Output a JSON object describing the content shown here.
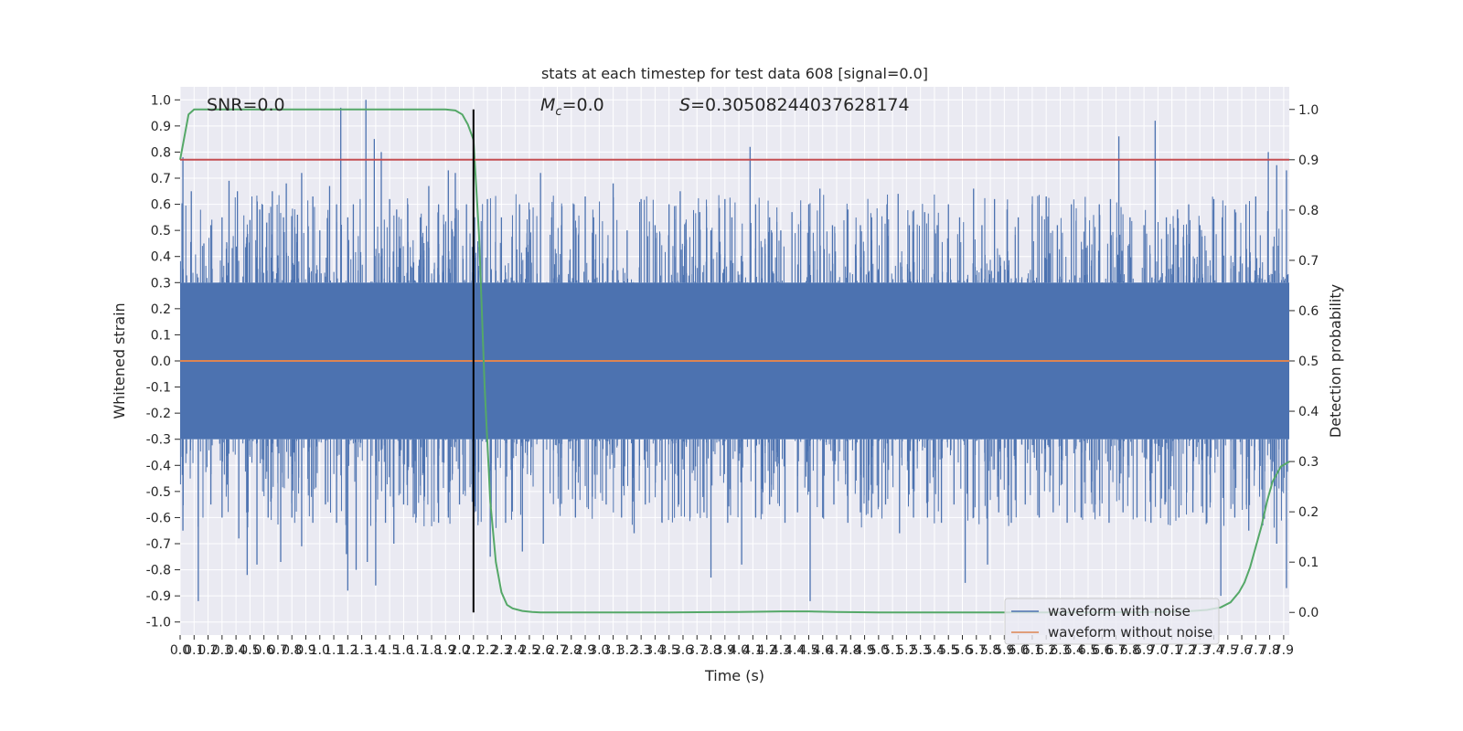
{
  "chart_data": {
    "type": "line",
    "title": "stats at each timestep for test data 608 [signal=0.0]",
    "xlabel": "Time (s)",
    "ylabel_left": "Whitened strain",
    "ylabel_right": "Detection probability",
    "xlim": [
      0.0,
      7.94
    ],
    "ylim_left": [
      -1.05,
      1.05
    ],
    "ylim_right": [
      -0.045,
      1.045
    ],
    "x_ticks": [
      0.0,
      0.1,
      0.2,
      0.3,
      0.4,
      0.5,
      0.6,
      0.7,
      0.8,
      0.9,
      1.0,
      1.1,
      1.2,
      1.3,
      1.4,
      1.5,
      1.6,
      1.7,
      1.8,
      1.9,
      2.0,
      2.1,
      2.2,
      2.3,
      2.4,
      2.5,
      2.6,
      2.7,
      2.8,
      2.9,
      3.0,
      3.1,
      3.2,
      3.3,
      3.4,
      3.5,
      3.6,
      3.7,
      3.8,
      3.9,
      4.0,
      4.1,
      4.2,
      4.3,
      4.4,
      4.5,
      4.6,
      4.7,
      4.8,
      4.9,
      5.0,
      5.1,
      5.2,
      5.3,
      5.4,
      5.5,
      5.6,
      5.7,
      5.8,
      5.9,
      6.0,
      6.1,
      6.2,
      6.3,
      6.4,
      6.5,
      6.6,
      6.7,
      6.8,
      6.9,
      7.0,
      7.1,
      7.2,
      7.3,
      7.4,
      7.5,
      7.6,
      7.7,
      7.8,
      7.9
    ],
    "y_ticks_left": [
      -1.0,
      -0.9,
      -0.8,
      -0.7,
      -0.6,
      -0.5,
      -0.4,
      -0.3,
      -0.2,
      -0.1,
      0.0,
      0.1,
      0.2,
      0.3,
      0.4,
      0.5,
      0.6,
      0.7,
      0.8,
      0.9,
      1.0
    ],
    "y_ticks_right": [
      0.0,
      0.1,
      0.2,
      0.3,
      0.4,
      0.5,
      0.6,
      0.7,
      0.8,
      0.9,
      1.0
    ],
    "grid": true,
    "legend_position": "lower-right",
    "annotations": {
      "snr": "SNR=0.0",
      "mc_symbol": "M",
      "mc_sub": "c",
      "mc_value": "=0.0",
      "s_symbol": "S",
      "s_value": "=0.30508244037628174"
    },
    "vertical_marker_x": 2.1,
    "threshold_probability": 0.9,
    "noise_spikes": {
      "series_name": "waveform with noise",
      "color": "#4c72b0",
      "pos": [
        [
          0.02,
          0.78
        ],
        [
          0.08,
          0.65
        ],
        [
          0.17,
          0.45
        ],
        [
          0.22,
          0.52
        ],
        [
          0.3,
          0.55
        ],
        [
          0.35,
          0.69
        ],
        [
          0.41,
          0.65
        ],
        [
          0.5,
          0.54
        ],
        [
          0.57,
          0.58
        ],
        [
          0.62,
          0.53
        ],
        [
          0.66,
          0.65
        ],
        [
          0.74,
          0.55
        ],
        [
          0.76,
          0.68
        ],
        [
          0.84,
          0.56
        ],
        [
          0.87,
          0.72
        ],
        [
          0.95,
          0.63
        ],
        [
          1.0,
          0.5
        ],
        [
          1.07,
          0.67
        ],
        [
          1.12,
          0.6
        ],
        [
          1.15,
          0.97
        ],
        [
          1.2,
          0.55
        ],
        [
          1.24,
          0.6
        ],
        [
          1.33,
          1.0
        ],
        [
          1.39,
          0.85
        ],
        [
          1.44,
          0.8
        ],
        [
          1.5,
          0.62
        ],
        [
          1.55,
          0.58
        ],
        [
          1.63,
          0.6
        ],
        [
          1.72,
          0.55
        ],
        [
          1.78,
          0.67
        ],
        [
          1.85,
          0.6
        ],
        [
          1.92,
          0.73
        ],
        [
          1.97,
          0.72
        ],
        [
          2.05,
          0.6
        ],
        [
          2.2,
          0.62
        ],
        [
          2.3,
          0.55
        ],
        [
          2.43,
          0.6
        ],
        [
          2.5,
          0.58
        ],
        [
          2.58,
          0.72
        ],
        [
          2.66,
          0.55
        ],
        [
          2.73,
          0.52
        ],
        [
          2.82,
          0.6
        ],
        [
          2.9,
          0.63
        ],
        [
          2.96,
          0.55
        ],
        [
          3.1,
          0.68
        ],
        [
          3.2,
          0.5
        ],
        [
          3.3,
          0.62
        ],
        [
          3.4,
          0.52
        ],
        [
          3.5,
          0.6
        ],
        [
          3.58,
          0.65
        ],
        [
          3.62,
          0.53
        ],
        [
          3.72,
          0.57
        ],
        [
          3.8,
          0.5
        ],
        [
          3.9,
          0.62
        ],
        [
          3.95,
          0.55
        ],
        [
          4.08,
          0.82
        ],
        [
          4.12,
          0.6
        ],
        [
          4.22,
          0.55
        ],
        [
          4.3,
          0.5
        ],
        [
          4.38,
          0.57
        ],
        [
          4.5,
          0.6
        ],
        [
          4.58,
          0.66
        ],
        [
          4.67,
          0.52
        ],
        [
          4.78,
          0.58
        ],
        [
          4.87,
          0.52
        ],
        [
          4.95,
          0.55
        ],
        [
          5.06,
          0.6
        ],
        [
          5.14,
          0.64
        ],
        [
          5.22,
          0.52
        ],
        [
          5.33,
          0.57
        ],
        [
          5.42,
          0.52
        ],
        [
          5.5,
          0.6
        ],
        [
          5.58,
          0.55
        ],
        [
          5.68,
          0.66
        ],
        [
          5.74,
          0.52
        ],
        [
          5.83,
          0.62
        ],
        [
          5.92,
          0.58
        ],
        [
          6.0,
          0.55
        ],
        [
          6.1,
          0.6
        ],
        [
          6.2,
          0.63
        ],
        [
          6.28,
          0.52
        ],
        [
          6.38,
          0.6
        ],
        [
          6.48,
          0.55
        ],
        [
          6.58,
          0.6
        ],
        [
          6.66,
          0.62
        ],
        [
          6.72,
          0.86
        ],
        [
          6.8,
          0.55
        ],
        [
          6.9,
          0.52
        ],
        [
          6.98,
          0.92
        ],
        [
          7.06,
          0.55
        ],
        [
          7.14,
          0.58
        ],
        [
          7.22,
          0.6
        ],
        [
          7.3,
          0.52
        ],
        [
          7.4,
          0.62
        ],
        [
          7.46,
          0.55
        ],
        [
          7.55,
          0.58
        ],
        [
          7.63,
          0.6
        ],
        [
          7.7,
          0.63
        ],
        [
          7.79,
          0.8
        ],
        [
          7.85,
          0.75
        ],
        [
          7.92,
          0.73
        ]
      ],
      "neg": [
        [
          0.02,
          -0.65
        ],
        [
          0.13,
          -0.92
        ],
        [
          0.22,
          -0.55
        ],
        [
          0.3,
          -0.6
        ],
        [
          0.42,
          -0.68
        ],
        [
          0.48,
          -0.82
        ],
        [
          0.55,
          -0.78
        ],
        [
          0.63,
          -0.6
        ],
        [
          0.72,
          -0.77
        ],
        [
          0.8,
          -0.6
        ],
        [
          0.87,
          -0.71
        ],
        [
          0.95,
          -0.62
        ],
        [
          1.04,
          -0.55
        ],
        [
          1.12,
          -0.62
        ],
        [
          1.19,
          -0.74
        ],
        [
          1.2,
          -0.88
        ],
        [
          1.26,
          -0.8
        ],
        [
          1.34,
          -0.77
        ],
        [
          1.4,
          -0.86
        ],
        [
          1.47,
          -0.62
        ],
        [
          1.53,
          -0.7
        ],
        [
          1.6,
          -0.55
        ],
        [
          1.69,
          -0.6
        ],
        [
          1.75,
          -0.52
        ],
        [
          1.85,
          -0.62
        ],
        [
          1.92,
          -0.6
        ],
        [
          2.0,
          -0.55
        ],
        [
          2.22,
          -0.75
        ],
        [
          2.33,
          -0.62
        ],
        [
          2.45,
          -0.73
        ],
        [
          2.6,
          -0.7
        ],
        [
          2.72,
          -0.55
        ],
        [
          2.83,
          -0.6
        ],
        [
          2.95,
          -0.52
        ],
        [
          3.05,
          -0.55
        ],
        [
          3.16,
          -0.6
        ],
        [
          3.25,
          -0.66
        ],
        [
          3.33,
          -0.55
        ],
        [
          3.45,
          -0.62
        ],
        [
          3.57,
          -0.55
        ],
        [
          3.65,
          -0.6
        ],
        [
          3.75,
          -0.58
        ],
        [
          3.8,
          -0.83
        ],
        [
          3.92,
          -0.62
        ],
        [
          4.02,
          -0.78
        ],
        [
          4.12,
          -0.6
        ],
        [
          4.22,
          -0.55
        ],
        [
          4.33,
          -0.62
        ],
        [
          4.42,
          -0.58
        ],
        [
          4.51,
          -0.92
        ],
        [
          4.6,
          -0.6
        ],
        [
          4.68,
          -0.55
        ],
        [
          4.78,
          -0.62
        ],
        [
          4.87,
          -0.58
        ],
        [
          4.95,
          -0.6
        ],
        [
          5.05,
          -0.55
        ],
        [
          5.15,
          -0.66
        ],
        [
          5.25,
          -0.6
        ],
        [
          5.35,
          -0.6
        ],
        [
          5.45,
          -0.62
        ],
        [
          5.54,
          -0.55
        ],
        [
          5.62,
          -0.85
        ],
        [
          5.68,
          -0.6
        ],
        [
          5.78,
          -0.78
        ],
        [
          5.86,
          -0.58
        ],
        [
          5.95,
          -0.62
        ],
        [
          6.05,
          -0.55
        ],
        [
          6.15,
          -0.6
        ],
        [
          6.25,
          -0.58
        ],
        [
          6.35,
          -0.62
        ],
        [
          6.45,
          -0.6
        ],
        [
          6.55,
          -0.55
        ],
        [
          6.65,
          -0.62
        ],
        [
          6.75,
          -0.58
        ],
        [
          6.85,
          -0.6
        ],
        [
          6.95,
          -0.62
        ],
        [
          7.05,
          -0.55
        ],
        [
          7.15,
          -0.6
        ],
        [
          7.25,
          -0.58
        ],
        [
          7.35,
          -0.62
        ],
        [
          7.45,
          -0.9
        ],
        [
          7.55,
          -0.6
        ],
        [
          7.65,
          -0.65
        ],
        [
          7.75,
          -0.63
        ],
        [
          7.85,
          -0.7
        ],
        [
          7.92,
          -0.87
        ]
      ],
      "band": [
        -0.3,
        0.3
      ]
    },
    "series": [
      {
        "name": "waveform without noise",
        "color": "#dd8452",
        "x": [
          0.0,
          7.94
        ],
        "y": [
          0.0,
          0.0
        ]
      },
      {
        "color": "#55a868",
        "axis": "right",
        "x": [
          0.0,
          0.06,
          0.1,
          0.2,
          0.5,
          1.0,
          1.5,
          1.9,
          1.97,
          2.02,
          2.06,
          2.1,
          2.14,
          2.18,
          2.22,
          2.26,
          2.3,
          2.34,
          2.38,
          2.45,
          2.52,
          2.58,
          2.65,
          2.8,
          3.5,
          4.0,
          4.3,
          4.5,
          4.7,
          5.0,
          5.5,
          6.0,
          6.5,
          7.0,
          7.2,
          7.35,
          7.45,
          7.52,
          7.58,
          7.62,
          7.66,
          7.7,
          7.74,
          7.78,
          7.82,
          7.88,
          7.94
        ],
        "y": [
          0.9,
          0.99,
          1.0,
          1.0,
          1.0,
          1.0,
          1.0,
          1.0,
          0.998,
          0.99,
          0.97,
          0.94,
          0.75,
          0.45,
          0.22,
          0.1,
          0.04,
          0.015,
          0.008,
          0.003,
          0.001,
          0.0,
          0.0,
          0.0,
          0.0,
          0.001,
          0.002,
          0.002,
          0.001,
          0.0,
          0.0,
          0.0,
          0.0,
          0.001,
          0.002,
          0.005,
          0.01,
          0.02,
          0.04,
          0.06,
          0.09,
          0.13,
          0.17,
          0.22,
          0.26,
          0.29,
          0.3
        ]
      },
      {
        "color": "#c44e52",
        "axis": "right",
        "x": [
          0.0,
          7.94
        ],
        "y": [
          0.9,
          0.9
        ]
      }
    ]
  }
}
